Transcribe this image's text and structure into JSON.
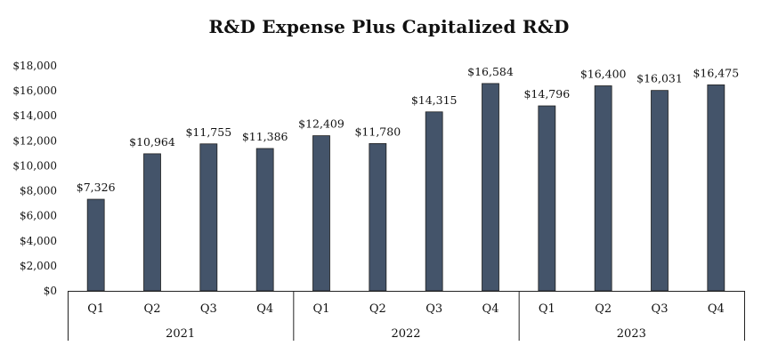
{
  "chart_data": {
    "type": "bar",
    "title": "R&D Expense Plus Capitalized R&D",
    "xlabel": "",
    "ylabel": "",
    "ylim": [
      0,
      18000
    ],
    "ytick_step": 2000,
    "ytick_labels": [
      "$0",
      "$2,000",
      "$4,000",
      "$6,000",
      "$8,000",
      "$10,000",
      "$12,000",
      "$14,000",
      "$16,000",
      "$18,000"
    ],
    "grid": false,
    "legend": "none",
    "bar_color": "#44546A",
    "categories": [
      "Q1",
      "Q2",
      "Q3",
      "Q4",
      "Q1",
      "Q2",
      "Q3",
      "Q4",
      "Q1",
      "Q2",
      "Q3",
      "Q4"
    ],
    "groups": [
      {
        "label": "2021",
        "count": 4
      },
      {
        "label": "2022",
        "count": 4
      },
      {
        "label": "2023",
        "count": 4
      }
    ],
    "values": [
      7326,
      10964,
      11755,
      11386,
      12409,
      11780,
      14315,
      16584,
      14796,
      16400,
      16031,
      16475
    ],
    "data_labels": [
      "$7,326",
      "$10,964",
      "$11,755",
      "$11,386",
      "$12,409",
      "$11,780",
      "$14,315",
      "$16,584",
      "$14,796",
      "$16,400",
      "$16,031",
      "$16,475"
    ]
  }
}
